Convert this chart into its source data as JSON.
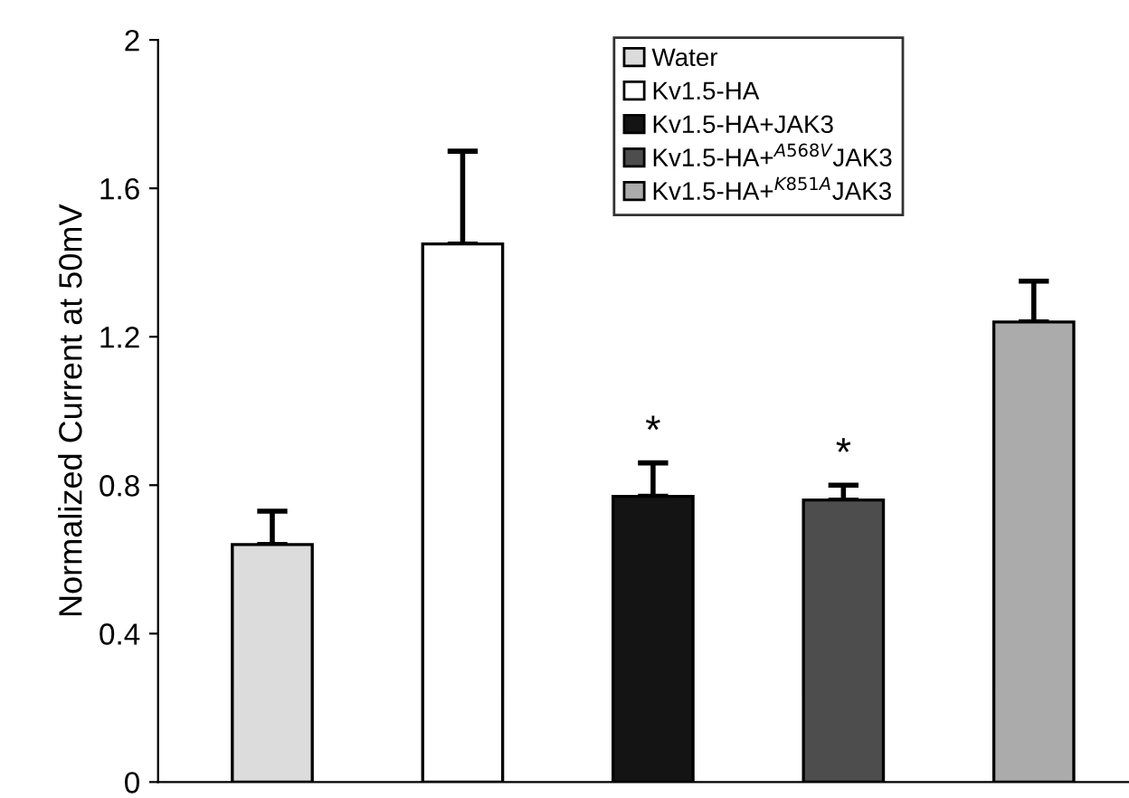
{
  "chart_data": {
    "type": "bar",
    "ylabel": "Normalized Current at 50mV",
    "categories": [
      null,
      null,
      null,
      null,
      null
    ],
    "series": [
      {
        "name": "Water",
        "color": "#dcdcdc",
        "values": [
          0.64,
          null,
          null,
          null,
          null
        ],
        "errors": [
          [
            0.64,
            0.73
          ],
          null,
          null,
          null,
          null
        ]
      },
      {
        "name": "Kv1.5-HA",
        "color": "#ffffff",
        "values": [
          null,
          1.45,
          null,
          null,
          null
        ],
        "errors": [
          null,
          [
            1.45,
            1.7
          ],
          null,
          null,
          null
        ]
      },
      {
        "name": "Kv1.5-HA+JAK3",
        "color": "#141414",
        "values": [
          null,
          null,
          0.77,
          null,
          null
        ],
        "errors": [
          null,
          null,
          [
            0.77,
            0.86
          ],
          null,
          null
        ],
        "value_labels": [
          null,
          null,
          "*",
          null,
          null
        ]
      },
      {
        "name": "Kv1.5-HA+$^{A568V}$JAK3",
        "color": "#4d4d4d",
        "values": [
          null,
          null,
          null,
          0.76,
          null
        ],
        "errors": [
          null,
          null,
          null,
          [
            0.76,
            0.8
          ],
          null
        ],
        "value_labels": [
          null,
          null,
          null,
          "*",
          null
        ]
      },
      {
        "name": "Kv1.5-HA+$^{K851A}$JAK3",
        "color": "#ababab",
        "values": [
          null,
          null,
          null,
          null,
          1.24
        ],
        "errors": [
          null,
          null,
          null,
          null,
          [
            1.24,
            1.35
          ]
        ]
      }
    ],
    "ylim": [
      0,
      2
    ],
    "yticks": [
      0,
      0.4,
      0.8,
      1.2,
      1.6,
      2
    ],
    "grid": false,
    "legend": "top right",
    "tick_labels": "y"
  }
}
